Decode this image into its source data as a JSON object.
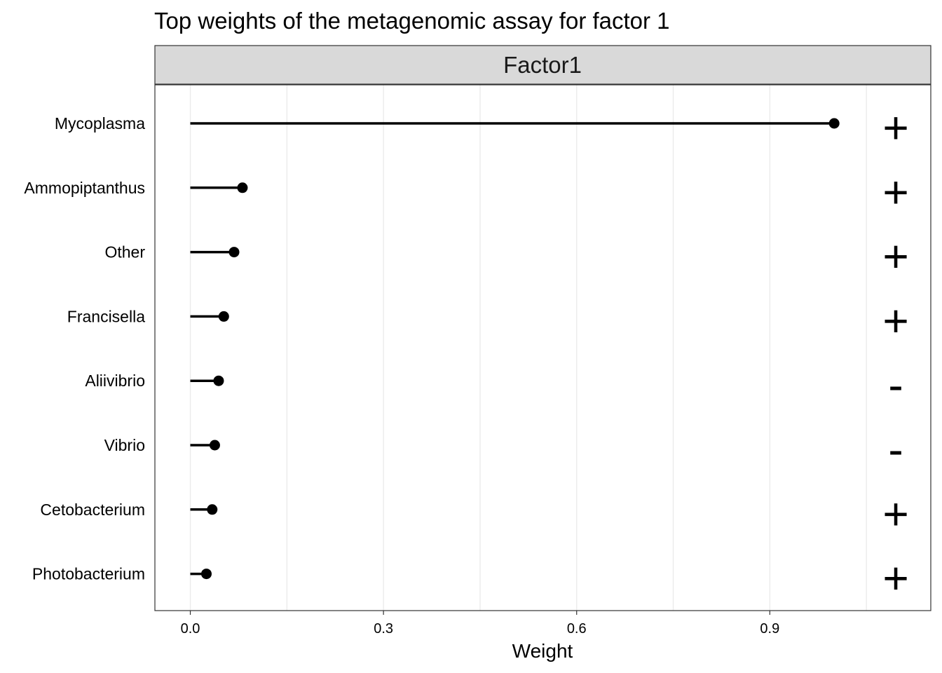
{
  "chart_data": {
    "type": "lollipop",
    "title": "Top weights of the metagenomic assay for factor 1",
    "facet": "Factor1",
    "xlabel": "Weight",
    "ylabel": "",
    "xlim": [
      -0.055,
      1.15
    ],
    "xticks": [
      0.0,
      0.3,
      0.6,
      0.9
    ],
    "xtick_labels": [
      "0.0",
      "0.3",
      "0.6",
      "0.9"
    ],
    "grid": true,
    "categories": [
      "Mycoplasma",
      "Ammopiptanthus",
      "Other",
      "Francisella",
      "Aliivibrio",
      "Vibrio",
      "Cetobacterium",
      "Photobacterium"
    ],
    "values": [
      1.0,
      0.081,
      0.068,
      0.052,
      0.044,
      0.038,
      0.034,
      0.025
    ],
    "signs": [
      "+",
      "+",
      "+",
      "+",
      "-",
      "-",
      "+",
      "+"
    ],
    "colors": {
      "mark": "#000000",
      "grid": "#ebebeb",
      "strip_fill": "#d9d9d9",
      "panel_border": "#333333"
    }
  }
}
